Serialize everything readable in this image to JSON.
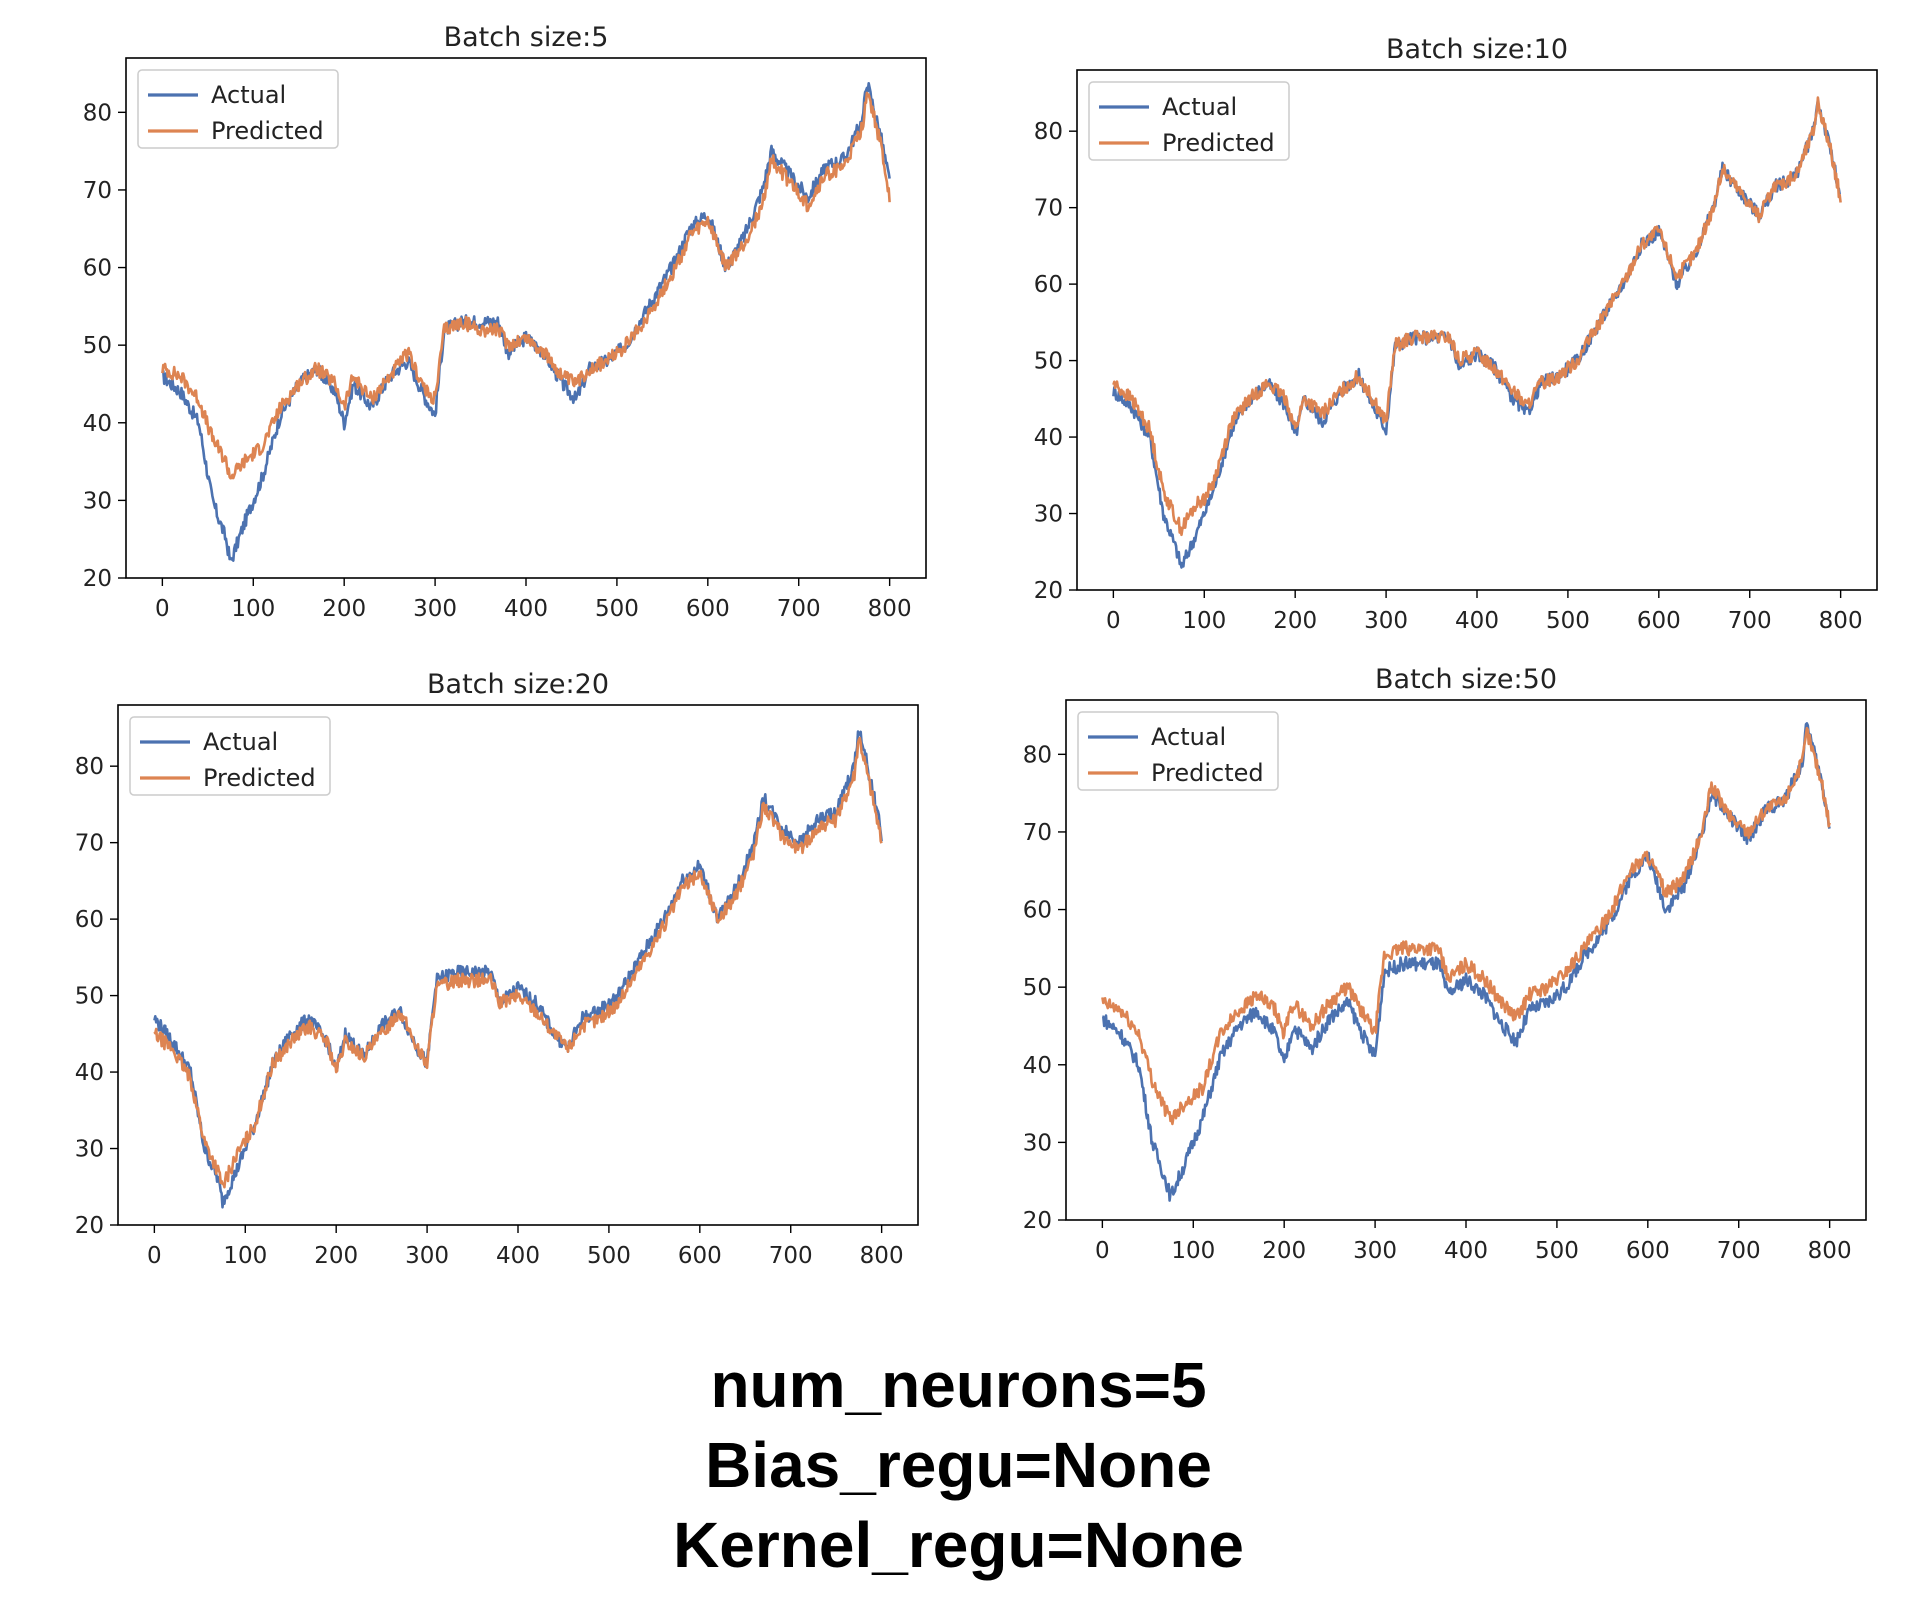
{
  "caption": {
    "line1": "num_neurons=5",
    "line2": "Bias_regu=None",
    "line3": "Kernel_regu=None"
  },
  "colors": {
    "actual": "#4c72b0",
    "predicted": "#dd8452"
  },
  "chart_data": [
    {
      "type": "line",
      "title": "Batch size:5",
      "xlabel": "",
      "ylabel": "",
      "xlim": [
        -40,
        840
      ],
      "ylim": [
        20,
        87
      ],
      "xticks": [
        0,
        100,
        200,
        300,
        400,
        500,
        600,
        700,
        800
      ],
      "yticks": [
        20,
        30,
        40,
        50,
        60,
        70,
        80
      ],
      "legend": "upper-left",
      "grid": false,
      "x": [
        0,
        20,
        40,
        55,
        70,
        75,
        90,
        100,
        110,
        130,
        150,
        170,
        190,
        200,
        210,
        230,
        250,
        270,
        290,
        300,
        310,
        330,
        350,
        370,
        380,
        400,
        420,
        440,
        455,
        470,
        490,
        510,
        530,
        550,
        565,
        580,
        600,
        620,
        640,
        660,
        670,
        690,
        710,
        730,
        750,
        770,
        775,
        790,
        800
      ],
      "series": [
        {
          "name": "Actual",
          "values": [
            46,
            44,
            40,
            30,
            25,
            22,
            27,
            30,
            33,
            41,
            45,
            47,
            44,
            40,
            45,
            42,
            46,
            48,
            43,
            41,
            52,
            53,
            53,
            53,
            49,
            51,
            49,
            45,
            43,
            47,
            48,
            50,
            54,
            58,
            61,
            65,
            67,
            60,
            64,
            70,
            75,
            72,
            69,
            73,
            74,
            79,
            84,
            77,
            71
          ]
        },
        {
          "name": "Predicted",
          "values": [
            47,
            46,
            43,
            38,
            35,
            33,
            35,
            36,
            37,
            42,
            45,
            47,
            45,
            42,
            46,
            43,
            46,
            49,
            44,
            43,
            52,
            53,
            52,
            52,
            50,
            51,
            49,
            46,
            45,
            47,
            48,
            50,
            53,
            57,
            60,
            64,
            66,
            60,
            63,
            68,
            74,
            71,
            68,
            72,
            73,
            78,
            83,
            76,
            69
          ]
        }
      ]
    },
    {
      "type": "line",
      "title": "Batch size:10",
      "xlabel": "",
      "ylabel": "",
      "xlim": [
        -40,
        840
      ],
      "ylim": [
        20,
        88
      ],
      "xticks": [
        0,
        100,
        200,
        300,
        400,
        500,
        600,
        700,
        800
      ],
      "yticks": [
        20,
        30,
        40,
        50,
        60,
        70,
        80
      ],
      "legend": "upper-left",
      "grid": false,
      "x": [
        0,
        20,
        40,
        55,
        70,
        75,
        90,
        100,
        110,
        130,
        150,
        170,
        190,
        200,
        210,
        230,
        250,
        270,
        290,
        300,
        310,
        330,
        350,
        370,
        380,
        400,
        420,
        440,
        455,
        470,
        490,
        510,
        530,
        550,
        565,
        580,
        600,
        620,
        640,
        660,
        670,
        690,
        710,
        730,
        750,
        770,
        775,
        790,
        800
      ],
      "series": [
        {
          "name": "Actual",
          "values": [
            46,
            44,
            40,
            30,
            25,
            23,
            27,
            30,
            33,
            41,
            45,
            47,
            44,
            40,
            45,
            42,
            46,
            48,
            43,
            41,
            52,
            53,
            53,
            53,
            49,
            51,
            49,
            45,
            43,
            47,
            48,
            50,
            54,
            58,
            61,
            65,
            67,
            60,
            64,
            70,
            75,
            72,
            69,
            73,
            74,
            80,
            84,
            77,
            71
          ]
        },
        {
          "name": "Predicted",
          "values": [
            47,
            45,
            41,
            33,
            29,
            28,
            31,
            32,
            34,
            42,
            45,
            47,
            45,
            41,
            45,
            43,
            46,
            48,
            44,
            42,
            52,
            53,
            53,
            53,
            50,
            51,
            49,
            46,
            44,
            47,
            48,
            50,
            54,
            58,
            61,
            65,
            67,
            61,
            64,
            70,
            75,
            72,
            69,
            73,
            74,
            80,
            84,
            77,
            71
          ]
        }
      ]
    },
    {
      "type": "line",
      "title": "Batch size:20",
      "xlabel": "",
      "ylabel": "",
      "xlim": [
        -40,
        840
      ],
      "ylim": [
        20,
        88
      ],
      "xticks": [
        0,
        100,
        200,
        300,
        400,
        500,
        600,
        700,
        800
      ],
      "yticks": [
        20,
        30,
        40,
        50,
        60,
        70,
        80
      ],
      "legend": "upper-left",
      "grid": false,
      "x": [
        0,
        20,
        40,
        55,
        70,
        75,
        90,
        100,
        110,
        130,
        150,
        170,
        190,
        200,
        210,
        230,
        250,
        270,
        290,
        300,
        310,
        330,
        350,
        370,
        380,
        400,
        420,
        440,
        455,
        470,
        490,
        510,
        530,
        550,
        565,
        580,
        600,
        620,
        640,
        660,
        670,
        690,
        710,
        730,
        750,
        770,
        775,
        790,
        800
      ],
      "series": [
        {
          "name": "Actual",
          "values": [
            47,
            44,
            40,
            30,
            26,
            23,
            27,
            30,
            33,
            41,
            45,
            47,
            44,
            40,
            45,
            42,
            46,
            48,
            43,
            41,
            52,
            53,
            53,
            53,
            49,
            51,
            49,
            45,
            43,
            47,
            48,
            50,
            54,
            58,
            61,
            65,
            67,
            60,
            64,
            70,
            76,
            72,
            70,
            73,
            74,
            80,
            85,
            77,
            71
          ]
        },
        {
          "name": "Predicted",
          "values": [
            45,
            43,
            39,
            31,
            27,
            25,
            29,
            31,
            33,
            41,
            44,
            46,
            44,
            40,
            44,
            42,
            45,
            48,
            43,
            41,
            51,
            52,
            52,
            52,
            49,
            50,
            48,
            45,
            43,
            46,
            47,
            49,
            53,
            57,
            60,
            64,
            66,
            60,
            63,
            69,
            75,
            71,
            69,
            72,
            73,
            79,
            84,
            76,
            70
          ]
        }
      ]
    },
    {
      "type": "line",
      "title": "Batch size:50",
      "xlabel": "",
      "ylabel": "",
      "xlim": [
        -40,
        840
      ],
      "ylim": [
        20,
        87
      ],
      "xticks": [
        0,
        100,
        200,
        300,
        400,
        500,
        600,
        700,
        800
      ],
      "yticks": [
        20,
        30,
        40,
        50,
        60,
        70,
        80
      ],
      "legend": "upper-left",
      "grid": false,
      "x": [
        0,
        20,
        40,
        55,
        70,
        75,
        90,
        100,
        110,
        130,
        150,
        170,
        190,
        200,
        210,
        230,
        250,
        270,
        290,
        300,
        310,
        330,
        350,
        370,
        380,
        400,
        420,
        440,
        455,
        470,
        490,
        510,
        530,
        550,
        565,
        580,
        600,
        620,
        640,
        660,
        670,
        690,
        710,
        730,
        750,
        770,
        775,
        790,
        800
      ],
      "series": [
        {
          "name": "Actual",
          "values": [
            46,
            44,
            40,
            30,
            25,
            23,
            27,
            30,
            33,
            41,
            45,
            47,
            44,
            40,
            45,
            42,
            46,
            48,
            43,
            41,
            52,
            53,
            53,
            53,
            49,
            51,
            49,
            45,
            43,
            47,
            48,
            50,
            54,
            57,
            60,
            64,
            67,
            60,
            63,
            70,
            75,
            72,
            69,
            73,
            74,
            79,
            84,
            77,
            71
          ]
        },
        {
          "name": "Predicted",
          "values": [
            48,
            47,
            44,
            38,
            34,
            33,
            35,
            36,
            37,
            44,
            47,
            49,
            47,
            44,
            48,
            45,
            48,
            50,
            46,
            44,
            54,
            55,
            55,
            55,
            51,
            53,
            51,
            48,
            46,
            49,
            50,
            52,
            55,
            58,
            61,
            65,
            67,
            62,
            64,
            70,
            76,
            72,
            70,
            73,
            74,
            79,
            83,
            77,
            71
          ]
        }
      ]
    }
  ]
}
